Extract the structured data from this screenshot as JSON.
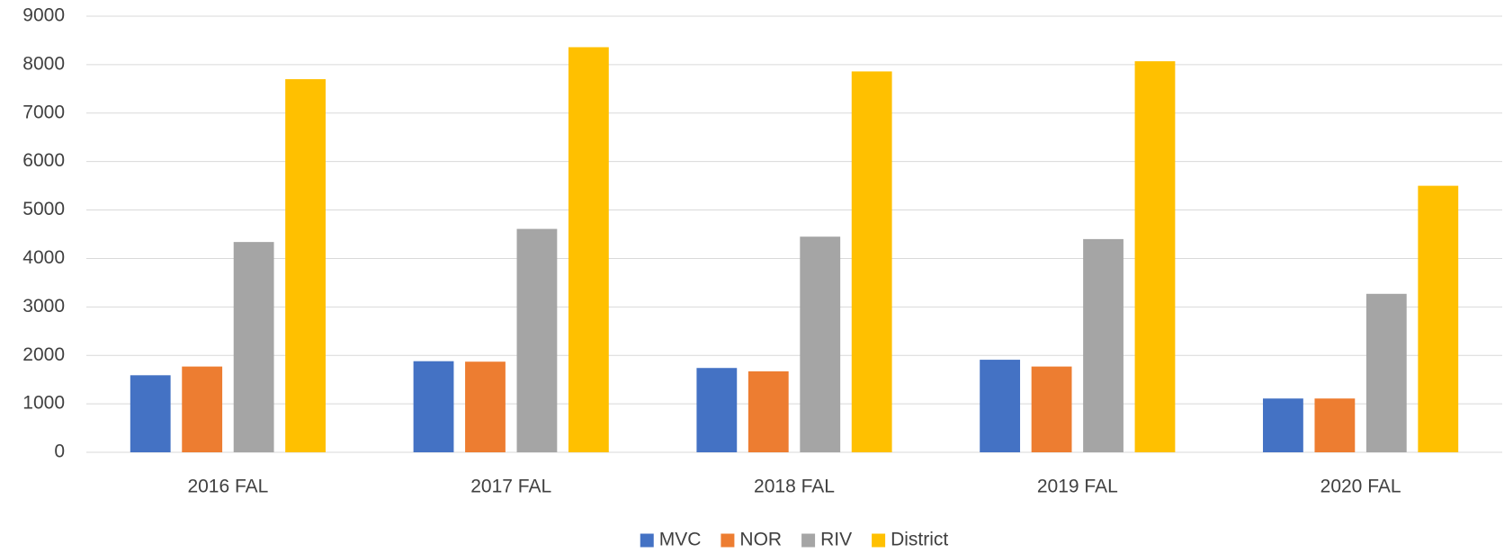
{
  "chart_data": {
    "type": "bar",
    "categories": [
      "2016 FAL",
      "2017 FAL",
      "2018 FAL",
      "2019 FAL",
      "2020 FAL"
    ],
    "series": [
      {
        "name": "MVC",
        "color": "#4472c4",
        "values": [
          1590,
          1880,
          1740,
          1910,
          1110
        ]
      },
      {
        "name": "NOR",
        "color": "#ed7d31",
        "values": [
          1770,
          1870,
          1670,
          1770,
          1110
        ]
      },
      {
        "name": "RIV",
        "color": "#a5a5a5",
        "values": [
          4340,
          4610,
          4450,
          4400,
          3270
        ]
      },
      {
        "name": "District",
        "color": "#ffc000",
        "values": [
          7700,
          8360,
          7860,
          8070,
          5500
        ]
      }
    ],
    "ylim": [
      0,
      9000
    ],
    "yticks": [
      0,
      1000,
      2000,
      3000,
      4000,
      5000,
      6000,
      7000,
      8000,
      9000
    ],
    "grid": true,
    "legend": "bottom"
  }
}
